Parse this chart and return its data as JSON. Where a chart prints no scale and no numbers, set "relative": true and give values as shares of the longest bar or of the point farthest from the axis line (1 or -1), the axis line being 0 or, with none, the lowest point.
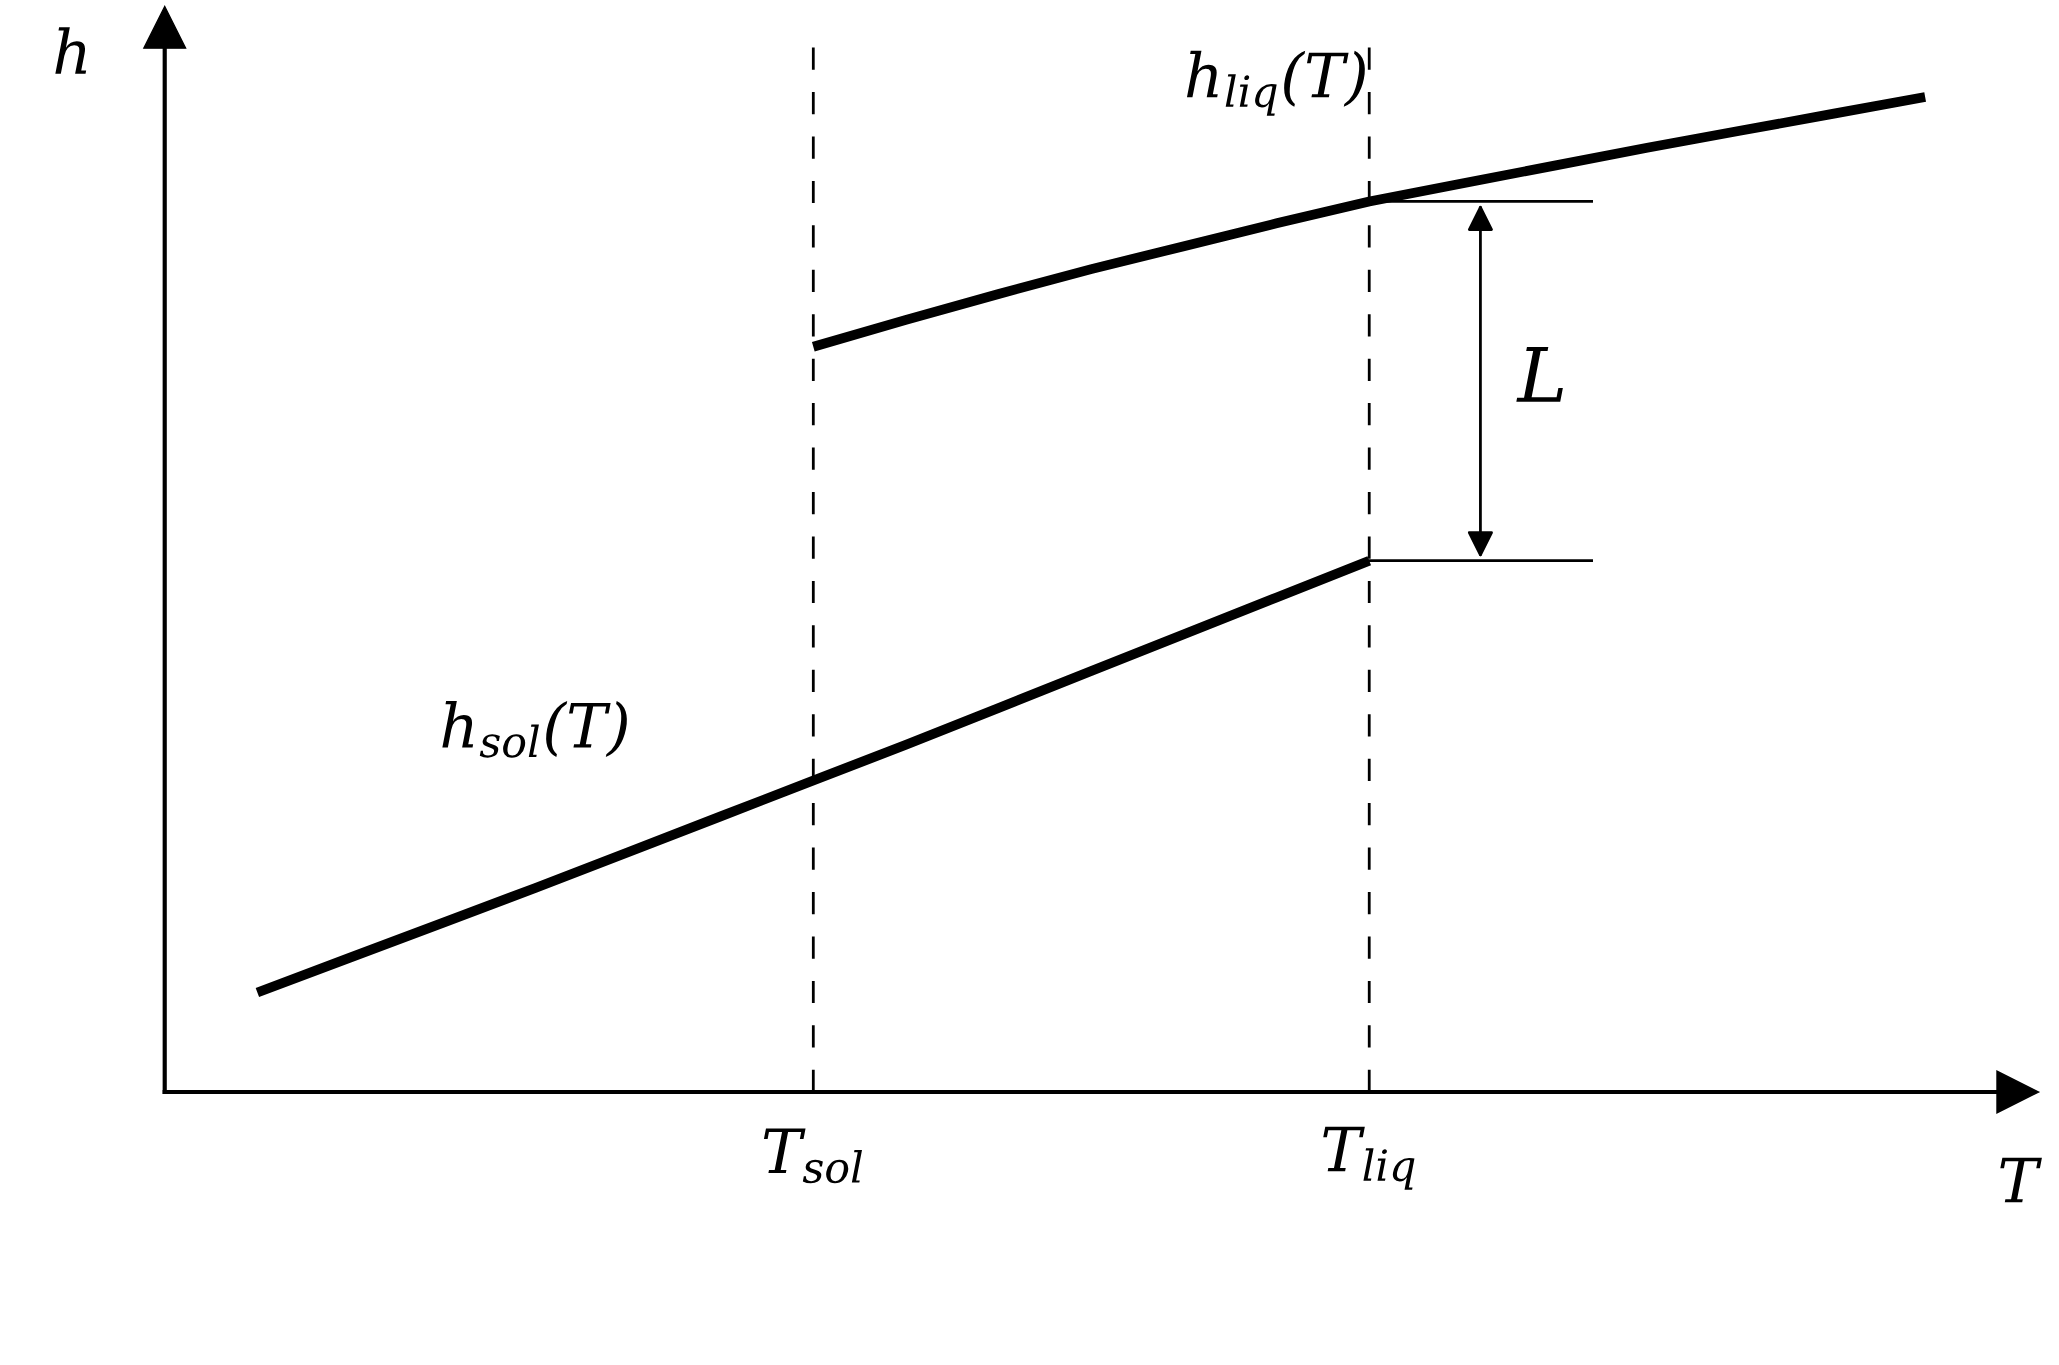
{
  "chart_data": {
    "type": "line",
    "relative": true,
    "xlabel": "T",
    "ylabel": "h",
    "tick_labels": "x",
    "grid": false,
    "marker": "none",
    "line_style": "solid",
    "categories": [
      null,
      null,
      null,
      null,
      null,
      null,
      null,
      "T$_{sol}$",
      null,
      null,
      null,
      null,
      null,
      "T$_{liq}$",
      null,
      null,
      null,
      null,
      null,
      null,
      null
    ],
    "series": [
      {
        "color": "#000000",
        "values": [
          null,
          0.1,
          0.135,
          0.17,
          0.205,
          0.241,
          0.277,
          0.313,
          0.349,
          0.386,
          0.423,
          0.46,
          0.497,
          0.534,
          null,
          null,
          null,
          null,
          null,
          null,
          null
        ]
      },
      {
        "color": "#000000",
        "values": [
          null,
          null,
          null,
          null,
          null,
          null,
          null,
          0.749,
          0.776,
          0.802,
          0.827,
          0.85,
          0.873,
          0.895,
          0.913,
          0.931,
          0.949,
          0.966,
          0.983,
          1.0,
          null
        ]
      }
    ],
    "ref_lines": [
      {
        "axis": "x",
        "value": "T$_{sol}$",
        "line_style": "dashed",
        "color": "#000000"
      },
      {
        "axis": "x",
        "value": "T$_{liq}$",
        "line_style": "dashed",
        "color": "#000000"
      }
    ],
    "annotations": [
      "h$_{liq}$(T)",
      "h$_{sol}$(T)",
      "L"
    ]
  }
}
